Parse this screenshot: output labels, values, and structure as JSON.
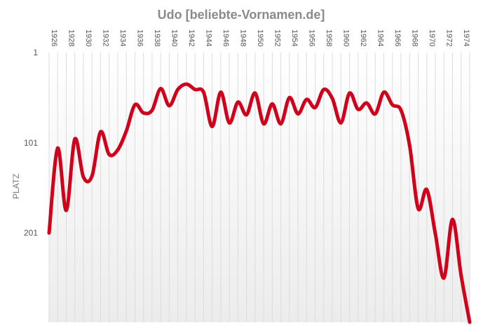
{
  "chart_data": {
    "type": "line",
    "title": "Udo [beliebte-Vornamen.de]",
    "xlabel": "",
    "ylabel": "PLATZ",
    "y_inverted": true,
    "ylim": [
      1,
      300
    ],
    "yticks": [
      1,
      101,
      201
    ],
    "x_tick_labels": [
      "1926",
      "1928",
      "1930",
      "1932",
      "1934",
      "1936",
      "1938",
      "1940",
      "1942",
      "1944",
      "1946",
      "1948",
      "1950",
      "1952",
      "1954",
      "1956",
      "1958",
      "1960",
      "1962",
      "1964",
      "1966",
      "1968",
      "1970",
      "1972",
      "1974"
    ],
    "x": [
      1926,
      1927,
      1928,
      1929,
      1930,
      1931,
      1932,
      1933,
      1934,
      1935,
      1936,
      1937,
      1938,
      1939,
      1940,
      1941,
      1942,
      1943,
      1944,
      1945,
      1946,
      1947,
      1948,
      1949,
      1950,
      1951,
      1952,
      1953,
      1954,
      1955,
      1956,
      1957,
      1958,
      1959,
      1960,
      1961,
      1962,
      1963,
      1964,
      1965,
      1966,
      1967,
      1968,
      1969,
      1970,
      1971,
      1972,
      1973,
      1974,
      1975
    ],
    "series": [
      {
        "name": "",
        "color": "#d0021b",
        "values": [
          201,
          107,
          176,
          97,
          139,
          138,
          89,
          114,
          109,
          88,
          59,
          68,
          65,
          41,
          60,
          42,
          36,
          42,
          45,
          83,
          45,
          79,
          56,
          70,
          46,
          80,
          58,
          80,
          51,
          69,
          53,
          62,
          42,
          52,
          79,
          46,
          64,
          57,
          69,
          45,
          59,
          65,
          104,
          174,
          153,
          202,
          251,
          186,
          248,
          300
        ]
      }
    ],
    "grid": true,
    "legend": "none",
    "background_gradient": [
      "#ffffff",
      "#ececec"
    ]
  }
}
